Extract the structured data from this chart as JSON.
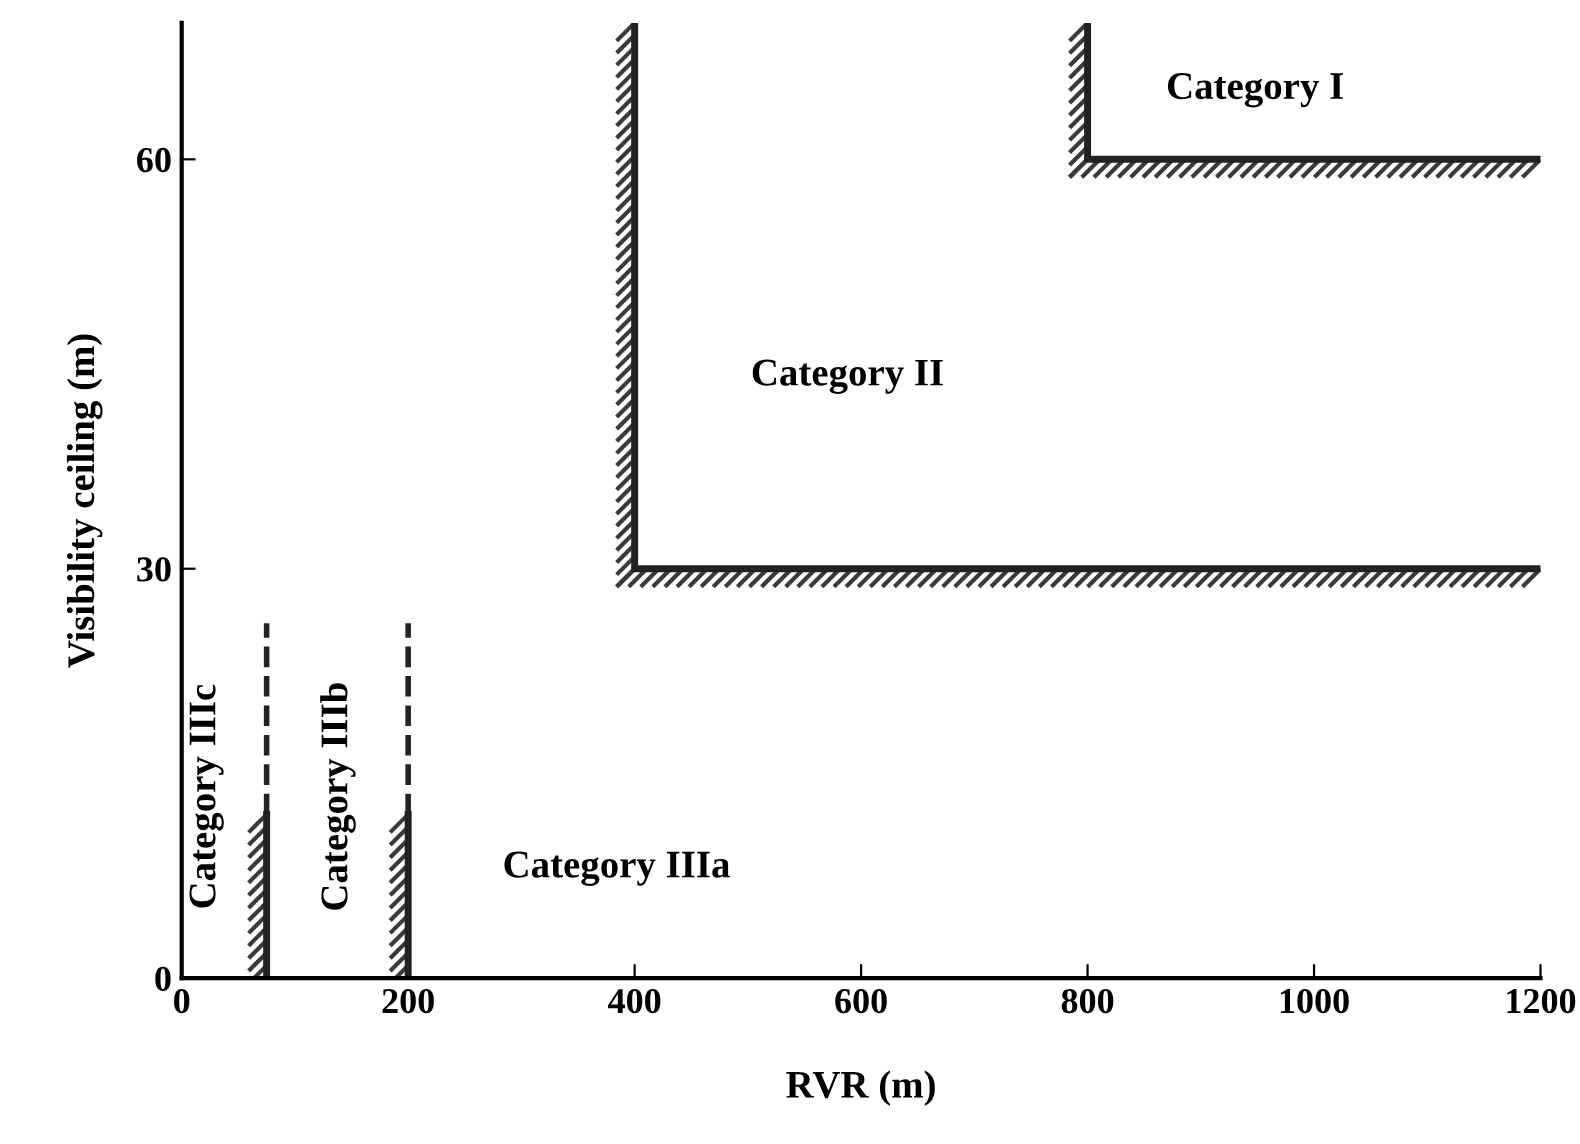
{
  "chart_data": {
    "type": "line",
    "xlabel": "RVR (m)",
    "ylabel": "Visibility ceiling (m)",
    "xlim": [
      0,
      1200
    ],
    "ylim": [
      0,
      70
    ],
    "xticks": [
      0,
      200,
      400,
      600,
      800,
      1000,
      1200
    ],
    "yticks": [
      0,
      30,
      60
    ],
    "grid": false,
    "legend": false,
    "marker": "none",
    "series": [
      {
        "color": "#222222",
        "line_style": "solid",
        "x": [
          800,
          800,
          1200
        ],
        "values": [
          70,
          60,
          60
        ]
      },
      {
        "color": "#222222",
        "line_style": "solid",
        "x": [
          400,
          400,
          1200
        ],
        "values": [
          70,
          30,
          30
        ]
      },
      {
        "color": "#222222",
        "line_style": "solid",
        "x": [
          200,
          200
        ],
        "values": [
          0,
          12
        ]
      },
      {
        "color": "#222222",
        "line_style": "dashed",
        "x": [
          200,
          200
        ],
        "values": [
          12,
          26
        ]
      },
      {
        "color": "#222222",
        "line_style": "solid",
        "x": [
          75,
          75
        ],
        "values": [
          0,
          12
        ]
      },
      {
        "color": "#222222",
        "line_style": "dashed",
        "x": [
          75,
          75
        ],
        "values": [
          12,
          26
        ]
      }
    ],
    "annotations": [
      "Category I",
      "Category II",
      "Category IIIa",
      "Category IIIc",
      "Category IIIb"
    ]
  }
}
